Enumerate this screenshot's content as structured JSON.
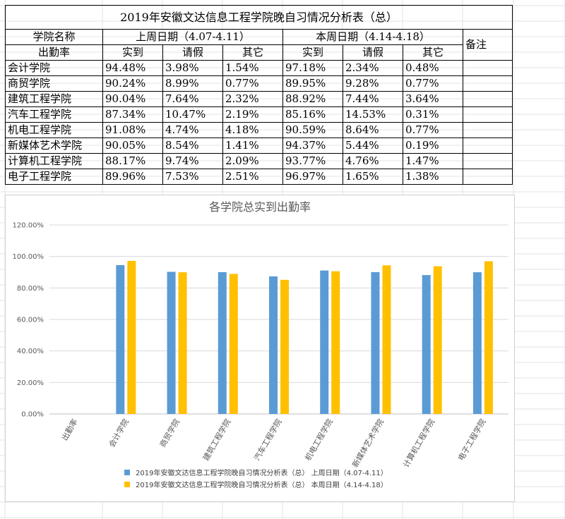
{
  "table": {
    "title": "2019年安徽文达信息工程学院晚自习情况分析表（总）",
    "header": {
      "college_label": "学院名称",
      "last_week": "上周日期（4.07-4.11）",
      "this_week": "本周日期（4.14-4.18）",
      "remark": "备注"
    },
    "subheader": {
      "rate_label": "出勤率",
      "cols": [
        "实到",
        "请假",
        "其它",
        "实到",
        "请假",
        "其它"
      ]
    },
    "rows": [
      {
        "name": "会计学院",
        "values": [
          "94.48%",
          "3.98%",
          "1.54%",
          "97.18%",
          "2.34%",
          "0.48%"
        ]
      },
      {
        "name": "商贸学院",
        "values": [
          "90.24%",
          "8.99%",
          "0.77%",
          "89.95%",
          "9.28%",
          "0.77%"
        ]
      },
      {
        "name": "建筑工程学院",
        "values": [
          "90.04%",
          "7.64%",
          "2.32%",
          "88.92%",
          "7.44%",
          "3.64%"
        ]
      },
      {
        "name": "汽车工程学院",
        "values": [
          "87.34%",
          "10.47%",
          "2.19%",
          "85.16%",
          "14.53%",
          "0.31%"
        ]
      },
      {
        "name": "机电工程学院",
        "values": [
          "91.08%",
          "4.74%",
          "4.18%",
          "90.59%",
          "8.64%",
          "0.77%"
        ]
      },
      {
        "name": "新媒体艺术学院",
        "values": [
          "90.05%",
          "8.54%",
          "1.41%",
          "94.37%",
          "5.44%",
          "0.19%"
        ]
      },
      {
        "name": "计算机工程学院",
        "values": [
          "88.17%",
          "9.74%",
          "2.09%",
          "93.77%",
          "4.76%",
          "1.47%"
        ]
      },
      {
        "name": "电子工程学院",
        "values": [
          "89.96%",
          "7.53%",
          "2.51%",
          "96.97%",
          "1.65%",
          "1.38%"
        ]
      }
    ]
  },
  "chart_data": {
    "type": "bar",
    "title": "各学院总实到出勤率",
    "categories": [
      "出勤率",
      "会计学院",
      "商贸学院",
      "建筑工程学院",
      "汽车工程学院",
      "机电工程学院",
      "新媒体艺术学院",
      "计算机工程学院",
      "电子工程学院"
    ],
    "series": [
      {
        "name": "2019年安徽文达信息工程学院晚自习情况分析表（总） 上周日期（4.07-4.11）",
        "color": "#5B9BD5",
        "values": [
          null,
          94.48,
          90.24,
          90.04,
          87.34,
          91.08,
          90.05,
          88.17,
          89.96
        ]
      },
      {
        "name": "2019年安徽文达信息工程学院晚自习情况分析表（总） 本周日期（4.14-4.18）",
        "color": "#FFC000",
        "values": [
          null,
          97.18,
          89.95,
          88.92,
          85.16,
          90.59,
          94.37,
          93.77,
          96.97
        ]
      }
    ],
    "yticks": [
      "0.00%",
      "20.00%",
      "40.00%",
      "60.00%",
      "80.00%",
      "100.00%",
      "120.00%"
    ],
    "ylim": [
      0,
      120
    ],
    "grid": true,
    "legend": "bottom",
    "xlabel": "",
    "ylabel": ""
  }
}
